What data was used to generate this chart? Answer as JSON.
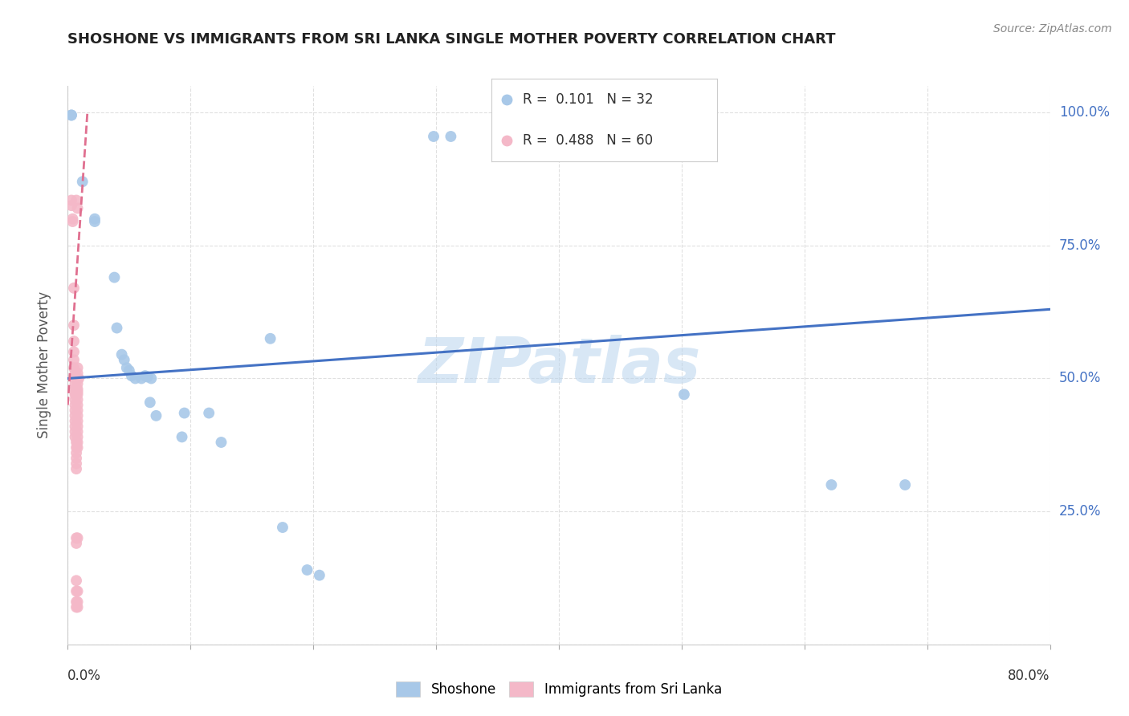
{
  "title": "SHOSHONE VS IMMIGRANTS FROM SRI LANKA SINGLE MOTHER POVERTY CORRELATION CHART",
  "source": "Source: ZipAtlas.com",
  "ylabel": "Single Mother Poverty",
  "watermark": "ZIPatlas",
  "legend1_color": "#a8c8e8",
  "legend2_color": "#f4b8c8",
  "shoshone_line_color": "#4472c4",
  "srilanka_line_color": "#e07090",
  "shoshone_scatter": [
    [
      0.003,
      0.995
    ],
    [
      0.003,
      0.995
    ],
    [
      0.012,
      0.87
    ],
    [
      0.022,
      0.8
    ],
    [
      0.022,
      0.795
    ],
    [
      0.038,
      0.69
    ],
    [
      0.04,
      0.595
    ],
    [
      0.044,
      0.545
    ],
    [
      0.046,
      0.535
    ],
    [
      0.048,
      0.52
    ],
    [
      0.05,
      0.515
    ],
    [
      0.052,
      0.505
    ],
    [
      0.055,
      0.5
    ],
    [
      0.06,
      0.5
    ],
    [
      0.063,
      0.505
    ],
    [
      0.065,
      0.503
    ],
    [
      0.068,
      0.5
    ],
    [
      0.067,
      0.455
    ],
    [
      0.072,
      0.43
    ],
    [
      0.095,
      0.435
    ],
    [
      0.115,
      0.435
    ],
    [
      0.093,
      0.39
    ],
    [
      0.125,
      0.38
    ],
    [
      0.165,
      0.575
    ],
    [
      0.175,
      0.22
    ],
    [
      0.195,
      0.14
    ],
    [
      0.205,
      0.13
    ],
    [
      0.298,
      0.955
    ],
    [
      0.312,
      0.955
    ],
    [
      0.502,
      0.47
    ],
    [
      0.622,
      0.3
    ],
    [
      0.682,
      0.3
    ]
  ],
  "srilanka_scatter": [
    [
      0.003,
      0.835
    ],
    [
      0.003,
      0.825
    ],
    [
      0.004,
      0.8
    ],
    [
      0.004,
      0.795
    ],
    [
      0.005,
      0.67
    ],
    [
      0.005,
      0.6
    ],
    [
      0.005,
      0.57
    ],
    [
      0.005,
      0.55
    ],
    [
      0.005,
      0.535
    ],
    [
      0.005,
      0.52
    ],
    [
      0.006,
      0.51
    ],
    [
      0.006,
      0.5
    ],
    [
      0.006,
      0.49
    ],
    [
      0.006,
      0.48
    ],
    [
      0.006,
      0.475
    ],
    [
      0.006,
      0.47
    ],
    [
      0.006,
      0.46
    ],
    [
      0.006,
      0.45
    ],
    [
      0.006,
      0.44
    ],
    [
      0.006,
      0.43
    ],
    [
      0.006,
      0.42
    ],
    [
      0.006,
      0.41
    ],
    [
      0.006,
      0.4
    ],
    [
      0.006,
      0.39
    ],
    [
      0.007,
      0.38
    ],
    [
      0.007,
      0.37
    ],
    [
      0.007,
      0.36
    ],
    [
      0.007,
      0.35
    ],
    [
      0.007,
      0.34
    ],
    [
      0.007,
      0.33
    ],
    [
      0.007,
      0.2
    ],
    [
      0.007,
      0.19
    ],
    [
      0.007,
      0.12
    ],
    [
      0.007,
      0.1
    ],
    [
      0.007,
      0.08
    ],
    [
      0.007,
      0.07
    ],
    [
      0.007,
      0.835
    ],
    [
      0.008,
      0.82
    ],
    [
      0.008,
      0.52
    ],
    [
      0.008,
      0.51
    ],
    [
      0.008,
      0.5
    ],
    [
      0.008,
      0.49
    ],
    [
      0.008,
      0.48
    ],
    [
      0.008,
      0.475
    ],
    [
      0.008,
      0.47
    ],
    [
      0.008,
      0.46
    ],
    [
      0.008,
      0.45
    ],
    [
      0.008,
      0.44
    ],
    [
      0.008,
      0.43
    ],
    [
      0.008,
      0.42
    ],
    [
      0.008,
      0.41
    ],
    [
      0.008,
      0.4
    ],
    [
      0.008,
      0.39
    ],
    [
      0.008,
      0.38
    ],
    [
      0.008,
      0.37
    ],
    [
      0.008,
      0.2
    ],
    [
      0.008,
      0.1
    ],
    [
      0.008,
      0.08
    ],
    [
      0.008,
      0.07
    ],
    [
      0.009,
      0.5
    ]
  ],
  "shoshone_line": [
    [
      0.0,
      0.5
    ],
    [
      0.8,
      0.63
    ]
  ],
  "srilanka_line": [
    [
      0.0,
      0.45
    ],
    [
      0.016,
      1.0
    ]
  ],
  "xlim": [
    0.0,
    0.8
  ],
  "ylim": [
    0.0,
    1.05
  ],
  "xticks": [
    0.0,
    0.1,
    0.2,
    0.3,
    0.4,
    0.5,
    0.6,
    0.7,
    0.8
  ],
  "yticks": [
    0.0,
    0.25,
    0.5,
    0.75,
    1.0
  ],
  "ytick_labels": [
    "",
    "25.0%",
    "50.0%",
    "75.0%",
    "100.0%"
  ],
  "ytick_color": "#4472c4",
  "grid_color": "#e0e0e0",
  "grid_style": "--",
  "title_fontsize": 13,
  "source_fontsize": 10,
  "ylabel_fontsize": 12,
  "ytick_fontsize": 12,
  "scatter_size": 100
}
